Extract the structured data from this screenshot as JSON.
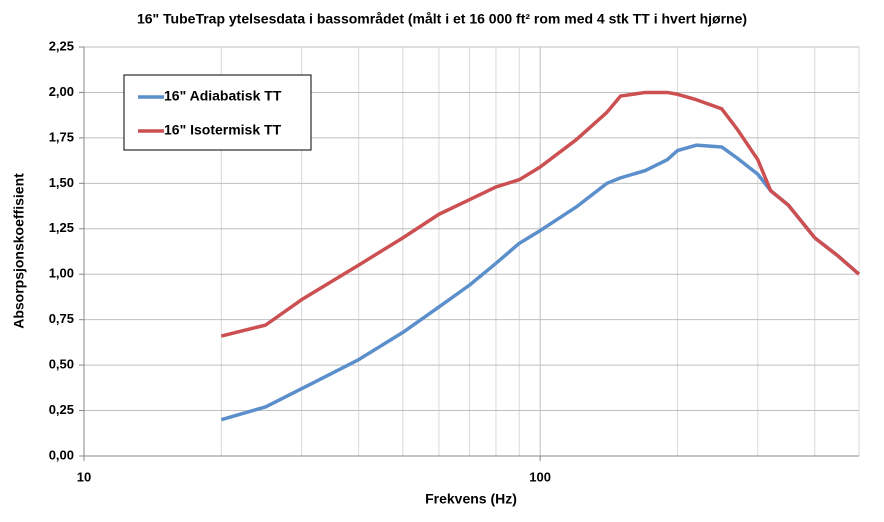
{
  "chart_data": {
    "type": "line",
    "title": "16\" TubeTrap ytelsesdata i bassområdet (målt i et 16 000 ft² rom med 4 stk TT i hvert hjørne)",
    "x_label": "Frekvens (Hz)",
    "y_label": "Absorpsjonskoeffisient",
    "x": [
      20,
      25,
      30,
      40,
      50,
      60,
      70,
      80,
      90,
      100,
      120,
      140,
      150,
      170,
      190,
      200,
      220,
      250,
      270,
      300,
      320,
      350,
      400,
      450,
      500
    ],
    "series": [
      {
        "name": "16\" Adiabatisk TT",
        "color": "#5b8fcb",
        "values": [
          0.2,
          0.27,
          0.37,
          0.53,
          0.68,
          0.82,
          0.94,
          1.06,
          1.17,
          1.24,
          1.37,
          1.5,
          1.53,
          1.57,
          1.63,
          1.68,
          1.71,
          1.7,
          1.64,
          1.55,
          1.46,
          1.38,
          1.2,
          1.1,
          1.0
        ]
      },
      {
        "name": "16\" Isotermisk TT",
        "color": "#cc5052",
        "values": [
          0.66,
          0.72,
          0.86,
          1.05,
          1.2,
          1.33,
          1.41,
          1.48,
          1.52,
          1.59,
          1.74,
          1.89,
          1.98,
          2.0,
          2.0,
          1.99,
          1.96,
          1.91,
          1.8,
          1.63,
          1.46,
          1.38,
          1.2,
          1.1,
          1.0
        ]
      }
    ],
    "xscale": "log",
    "xlim": [
      10,
      500
    ],
    "xticks": [
      10,
      100
    ],
    "ylim": [
      0,
      2.25
    ],
    "yticks": [
      {
        "value": 0,
        "label": "0,00"
      },
      {
        "value": 0.25,
        "label": "0,25"
      },
      {
        "value": 0.5,
        "label": "0,50"
      },
      {
        "value": 0.75,
        "label": "0,75"
      },
      {
        "value": 1,
        "label": "1,00"
      },
      {
        "value": 1.25,
        "label": "1,25"
      },
      {
        "value": 1.5,
        "label": "1,50"
      },
      {
        "value": 1.75,
        "label": "1,75"
      },
      {
        "value": 2,
        "label": "2,00"
      },
      {
        "value": 2.25,
        "label": "2,25"
      }
    ],
    "grid": true,
    "legend": "upper left"
  }
}
